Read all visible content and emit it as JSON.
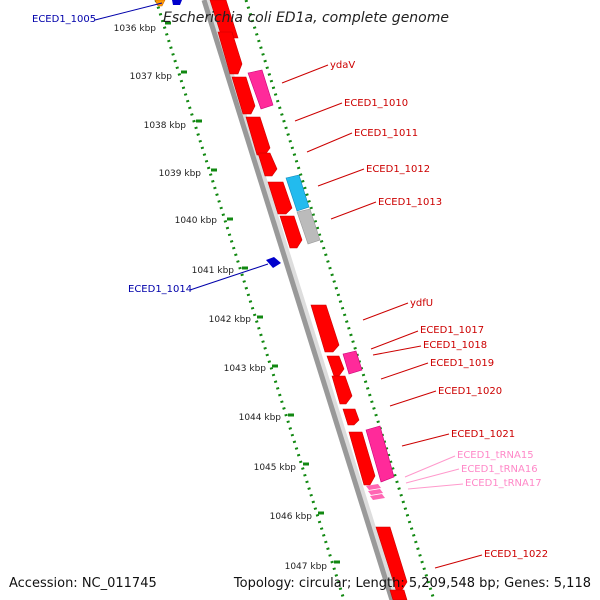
{
  "title": "Escherichia coli ED1a, complete genome",
  "footer": {
    "accession": "Accession: NC_011745",
    "summary": "Topology: circular; Length: 5,209,548 bp; Genes: 5,118"
  },
  "colors": {
    "gene_forward": "#ff0000",
    "gene_reverse": "#0000cc",
    "rna_feature": "#ff2a9a",
    "trna_feature": "#ff66b3",
    "misc_cyan": "#22bbee",
    "misc_grey": "#bbbbbb",
    "orange_feature": "#ff9900",
    "tick_green": "#118811",
    "backbone": "#999999"
  },
  "kbp_marks": [
    "1036 kbp",
    "1037 kbp",
    "1038 kbp",
    "1039 kbp",
    "1040 kbp",
    "1041 kbp",
    "1042 kbp",
    "1043 kbp",
    "1044 kbp",
    "1045 kbp",
    "1046 kbp",
    "1047 kbp"
  ],
  "gene_labels": [
    {
      "name": "ECED1_1005",
      "strand": "reverse"
    },
    {
      "name": "ydaV",
      "strand": "forward"
    },
    {
      "name": "ECED1_1010",
      "strand": "forward"
    },
    {
      "name": "ECED1_1011",
      "strand": "forward"
    },
    {
      "name": "ECED1_1012",
      "strand": "forward"
    },
    {
      "name": "ECED1_1013",
      "strand": "forward"
    },
    {
      "name": "ECED1_1014",
      "strand": "reverse"
    },
    {
      "name": "ydfU",
      "strand": "forward"
    },
    {
      "name": "ECED1_1017",
      "strand": "forward"
    },
    {
      "name": "ECED1_1018",
      "strand": "forward"
    },
    {
      "name": "ECED1_1019",
      "strand": "forward"
    },
    {
      "name": "ECED1_1020",
      "strand": "forward"
    },
    {
      "name": "ECED1_1021",
      "strand": "forward"
    },
    {
      "name": "ECED1_tRNA15",
      "strand": "trna"
    },
    {
      "name": "ECED1_tRNA16",
      "strand": "trna"
    },
    {
      "name": "ECED1_tRNA17",
      "strand": "trna"
    },
    {
      "name": "ECED1_1022",
      "strand": "forward"
    }
  ]
}
